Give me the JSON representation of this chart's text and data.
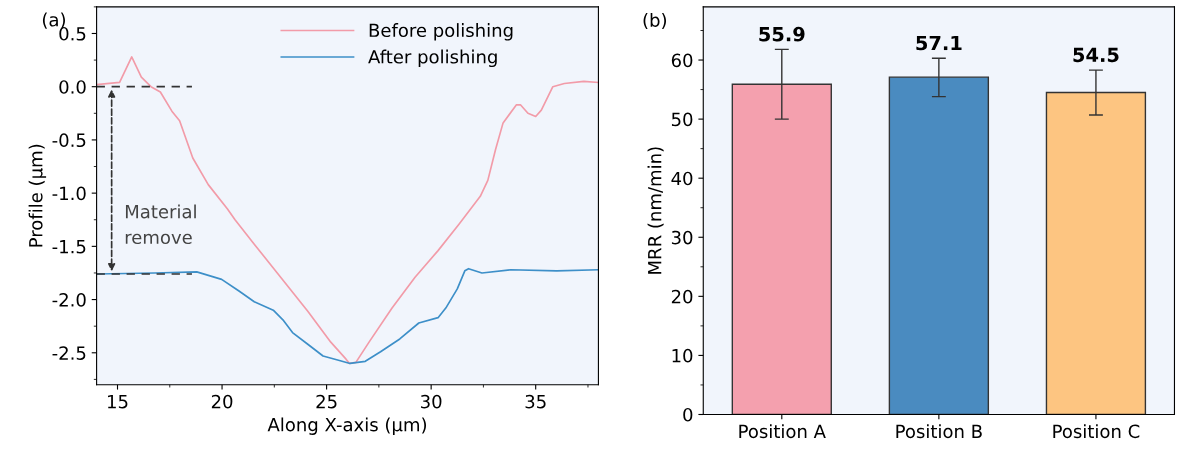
{
  "chart_data": [
    {
      "type": "line",
      "xlabel": "Along X-axis (µm)",
      "ylabel": "Profile (µm)",
      "xlim": [
        14,
        38
      ],
      "ylim": [
        -2.8,
        0.75
      ],
      "xticks": [
        15,
        20,
        25,
        30,
        35
      ],
      "yticks": [
        -2.5,
        {
          "value": -2,
          "label": "-2.0"
        },
        -1.5,
        {
          "value": -1,
          "label": "-1.0"
        },
        -0.5,
        {
          "value": 0,
          "label": "0.0"
        },
        0.5
      ],
      "legend": "top",
      "grid": false,
      "annotations": [
        "(a)",
        "Material\nremove"
      ],
      "ref_lines": [
        {
          "axis": "y",
          "value": 0.0,
          "line_style": "dashed",
          "color": "#333333"
        },
        {
          "axis": "y",
          "value": -1.76,
          "line_style": "dashed",
          "color": "#333333"
        }
      ],
      "series": [
        {
          "name": "Before polishing",
          "color": "#f29ba8",
          "x": [
            14.0,
            15.1,
            15.68,
            16.14,
            16.6,
            17.05,
            17.6,
            17.97,
            18.6,
            19.34,
            20.26,
            20.62,
            21.54,
            22.64,
            24.1,
            25.2,
            25.93,
            26.1,
            26.4,
            27.03,
            28.13,
            29.23,
            30.33,
            31.34,
            32.35,
            32.71,
            33.08,
            33.44,
            34.08,
            34.27,
            34.63,
            35.0,
            35.27,
            35.82,
            36.37,
            37.3,
            37.97
          ],
          "values": [
            0.02,
            0.04,
            0.28,
            0.09,
            0.0,
            -0.05,
            -0.23,
            -0.32,
            -0.67,
            -0.92,
            -1.15,
            -1.25,
            -1.48,
            -1.75,
            -2.11,
            -2.4,
            -2.56,
            -2.6,
            -2.59,
            -2.4,
            -2.08,
            -1.79,
            -1.54,
            -1.29,
            -1.03,
            -0.88,
            -0.59,
            -0.34,
            -0.17,
            -0.17,
            -0.25,
            -0.28,
            -0.22,
            0.0,
            0.03,
            0.05,
            0.04
          ]
        },
        {
          "name": "After polishing",
          "color": "#3d8fc8",
          "x": [
            14.01,
            16.78,
            18.79,
            19.98,
            20.81,
            21.54,
            22.45,
            22.91,
            23.37,
            24.1,
            24.83,
            25.57,
            26.12,
            26.85,
            27.58,
            28.5,
            29.41,
            30.33,
            30.7,
            31.25,
            31.61,
            31.79,
            32.43,
            33.81,
            36.0,
            37.97
          ],
          "values": [
            -1.76,
            -1.75,
            -1.74,
            -1.81,
            -1.92,
            -2.02,
            -2.1,
            -2.19,
            -2.31,
            -2.42,
            -2.53,
            -2.57,
            -2.6,
            -2.58,
            -2.49,
            -2.37,
            -2.22,
            -2.17,
            -2.08,
            -1.9,
            -1.73,
            -1.71,
            -1.75,
            -1.72,
            -1.73,
            -1.72
          ]
        }
      ]
    },
    {
      "type": "bar",
      "ylabel": "MRR (nm/min)",
      "categories": [
        "Position A",
        "Position B",
        "Position C"
      ],
      "values": [
        55.9,
        57.1,
        54.5
      ],
      "colors": [
        "#f4a0ae",
        "#4a8bc0",
        "#fdc581"
      ],
      "errors": [
        [
          50.0,
          61.8
        ],
        [
          53.8,
          60.3
        ],
        [
          50.7,
          58.3
        ]
      ],
      "data_labels": true,
      "ylim": [
        0,
        69
      ],
      "yticks": [
        0,
        10,
        20,
        30,
        40,
        50,
        60
      ],
      "grid": false,
      "annotations": [
        "(b)"
      ]
    }
  ]
}
